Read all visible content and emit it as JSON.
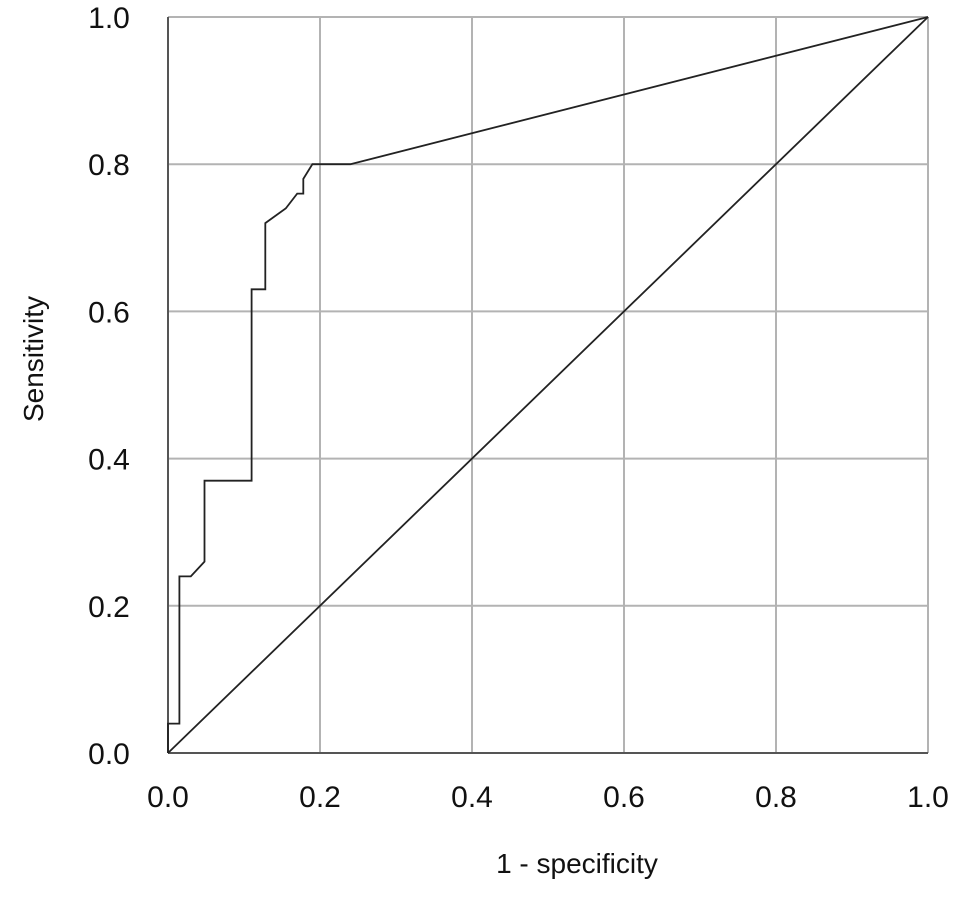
{
  "chart_data": {
    "type": "line",
    "title": "",
    "xlabel": "1 - specificity",
    "ylabel": "Sensitivity",
    "xlim": [
      0,
      1
    ],
    "ylim": [
      0,
      1
    ],
    "grid": true,
    "legend": "none",
    "x_ticks": [
      "0.0",
      "0.2",
      "0.4",
      "0.6",
      "0.8",
      "1.0"
    ],
    "y_ticks": [
      "0.0",
      "0.2",
      "0.4",
      "0.6",
      "0.8",
      "1.0"
    ],
    "x_tick_values": [
      0,
      0.2,
      0.4,
      0.6,
      0.8,
      1.0
    ],
    "y_tick_values": [
      0,
      0.2,
      0.4,
      0.6,
      0.8,
      1.0
    ],
    "series": [
      {
        "color": "#222222",
        "x": [
          0,
          0,
          0.015,
          0.015,
          0.03,
          0.048,
          0.048,
          0.11,
          0.11,
          0.128,
          0.128,
          0.155,
          0.17,
          0.178,
          0.178,
          0.19,
          0.24,
          1.0
        ],
        "y": [
          0,
          0.04,
          0.04,
          0.24,
          0.24,
          0.26,
          0.37,
          0.37,
          0.63,
          0.63,
          0.72,
          0.74,
          0.76,
          0.76,
          0.78,
          0.8,
          0.8,
          1.0
        ]
      },
      {
        "color": "#222222",
        "x": [
          0,
          1.0
        ],
        "y": [
          0,
          1.0
        ]
      }
    ]
  }
}
